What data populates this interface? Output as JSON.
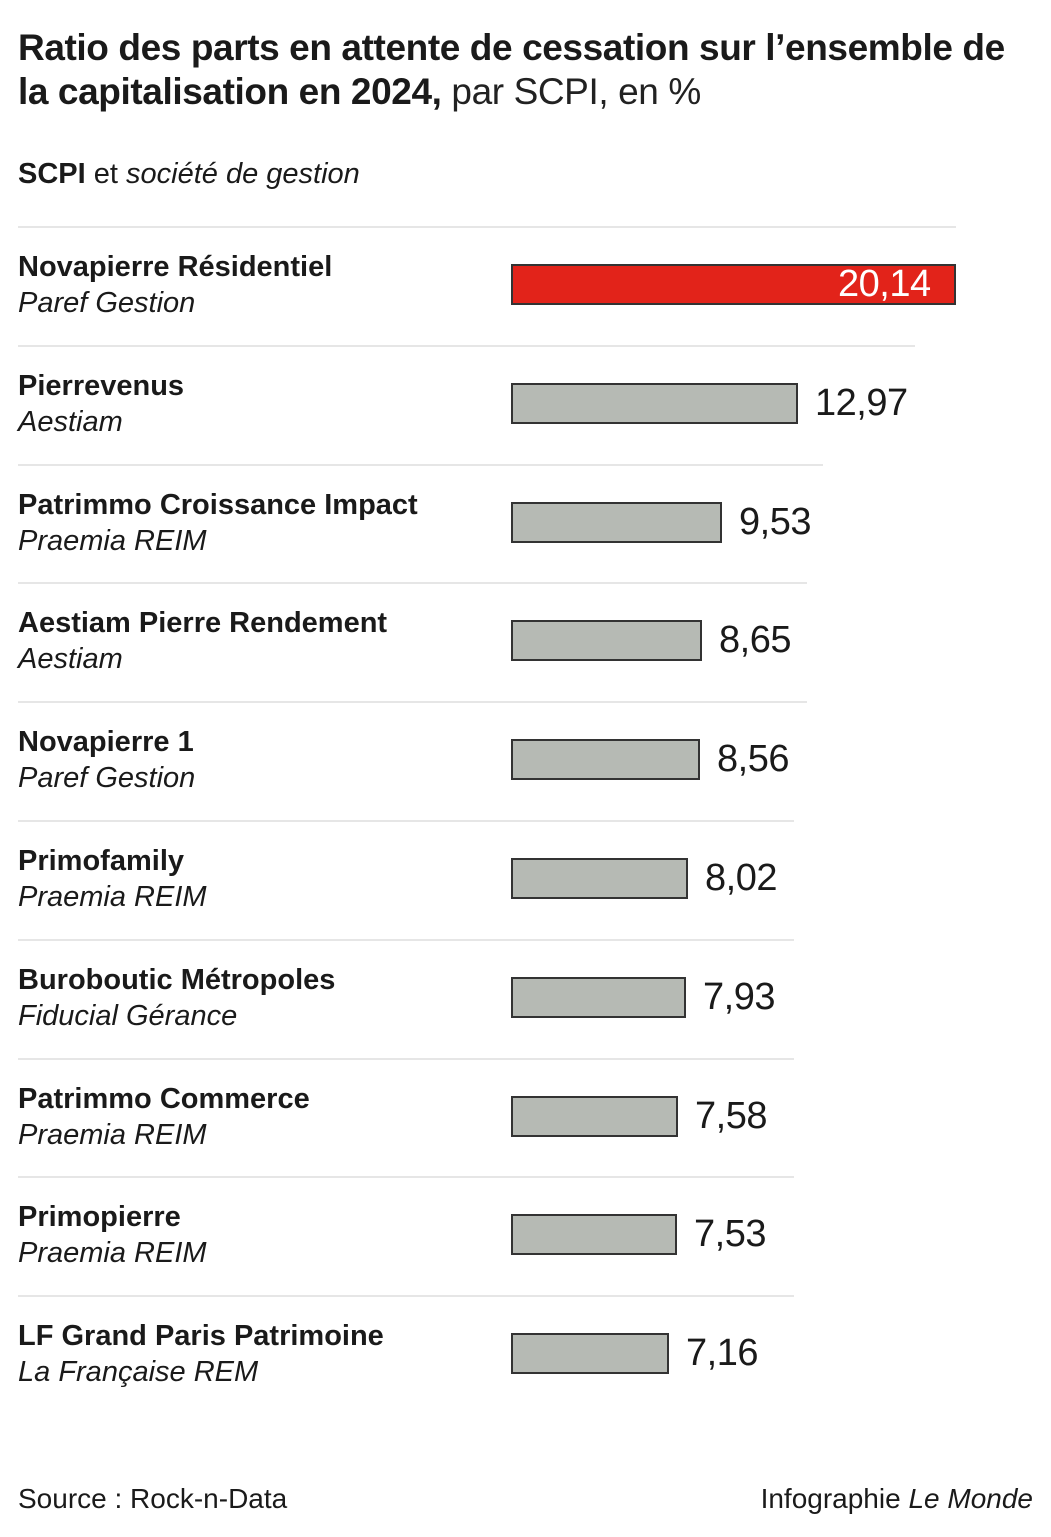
{
  "header": {
    "title_bold": "Ratio des parts en attente de cessation sur l’ensemble de la capitalisation en 2024,",
    "title_rest": " par SCPI, en %",
    "col_bold": "SCPI",
    "col_mid": " et ",
    "col_italic": "société de gestion"
  },
  "chart_data": {
    "type": "bar",
    "orientation": "horizontal",
    "unit": "%",
    "highlight_color": "#e2231a",
    "bar_color": "#b6bab4",
    "rows": [
      {
        "name": "Novapierre Résidentiel",
        "company": "Paref Gestion",
        "value": 20.14,
        "label": "20,14",
        "highlight": true
      },
      {
        "name": "Pierrevenus",
        "company": "Aestiam",
        "value": 12.97,
        "label": "12,97",
        "highlight": false
      },
      {
        "name": "Patrimmo Croissance Impact",
        "company": "Praemia REIM",
        "value": 9.53,
        "label": "9,53",
        "highlight": false
      },
      {
        "name": "Aestiam Pierre Rendement",
        "company": "Aestiam",
        "value": 8.65,
        "label": "8,65",
        "highlight": false
      },
      {
        "name": "Novapierre 1",
        "company": "Paref Gestion",
        "value": 8.56,
        "label": "8,56",
        "highlight": false
      },
      {
        "name": "Primofamily",
        "company": "Praemia REIM",
        "value": 8.02,
        "label": "8,02",
        "highlight": false
      },
      {
        "name": "Buroboutic Métropoles",
        "company": "Fiducial Gérance",
        "value": 7.93,
        "label": "7,93",
        "highlight": false
      },
      {
        "name": "Patrimmo Commerce",
        "company": "Praemia REIM",
        "value": 7.58,
        "label": "7,58",
        "highlight": false
      },
      {
        "name": "Primopierre",
        "company": "Praemia REIM",
        "value": 7.53,
        "label": "7,53",
        "highlight": false
      },
      {
        "name": "LF Grand Paris Patrimoine",
        "company": "La Française REM",
        "value": 7.16,
        "label": "7,16",
        "highlight": false
      }
    ]
  },
  "footer": {
    "source": "Source : Rock-n-Data",
    "credit_plain": "Infographie ",
    "credit_italic": "Le Monde"
  }
}
